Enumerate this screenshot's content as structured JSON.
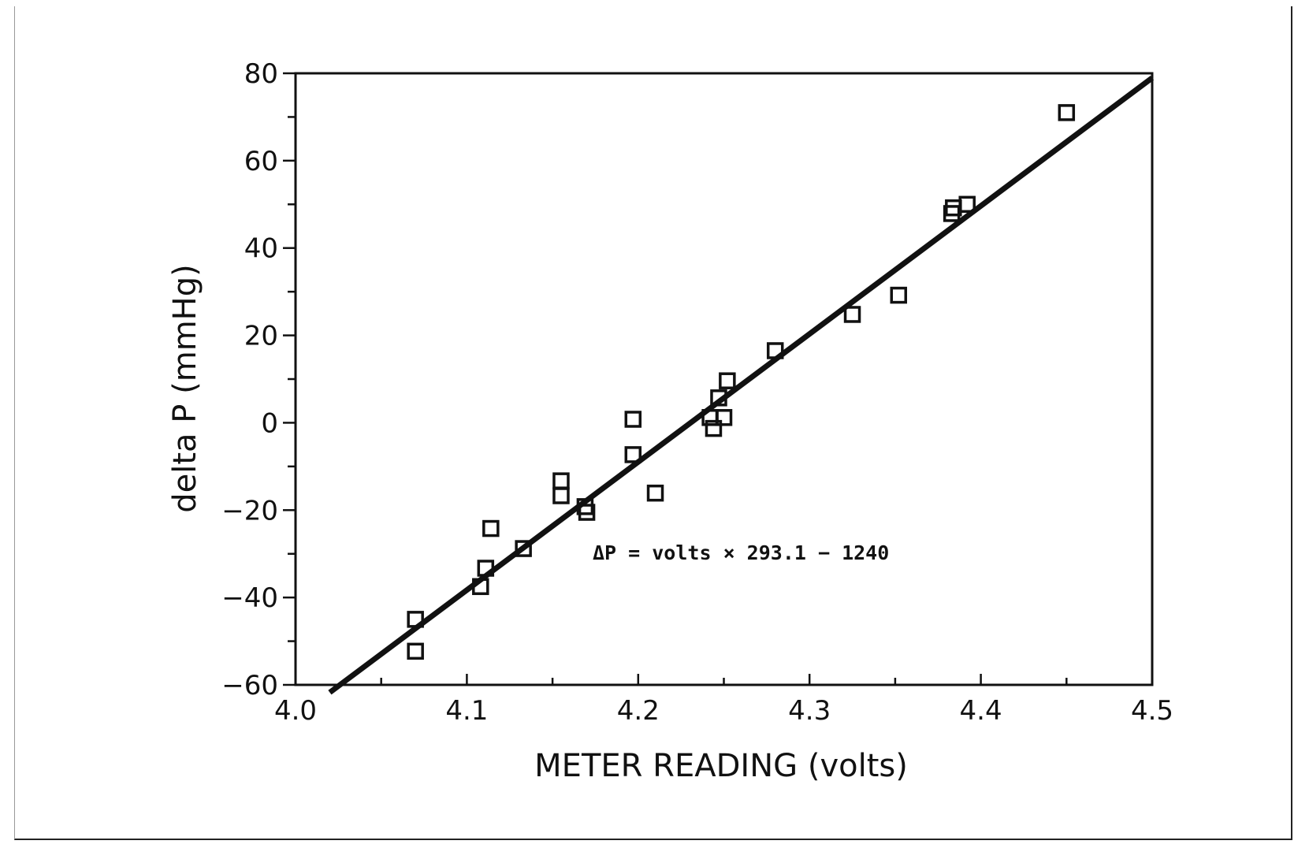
{
  "chart_data": {
    "type": "scatter",
    "xlabel": "METER READING (volts)",
    "ylabel": "delta P (mmHg)",
    "xlim": [
      4.0,
      4.5
    ],
    "ylim": [
      -60,
      80
    ],
    "x_ticks": [
      4.0,
      4.1,
      4.2,
      4.3,
      4.4,
      4.5
    ],
    "x_tick_labels": [
      "4.0",
      "4.1",
      "4.2",
      "4.3",
      "4.4",
      "4.5"
    ],
    "y_ticks": [
      -60,
      -40,
      -20,
      0,
      20,
      40,
      60,
      80
    ],
    "y_tick_labels": [
      "−60",
      "−40",
      "−20",
      "0",
      "20",
      "40",
      "60",
      "80"
    ],
    "grid": false,
    "annotation": "ΔP = volts × 293.1 − 1240",
    "fit_line": {
      "slope": 293.1,
      "intercept": -1240,
      "x_range": [
        4.02,
        4.5
      ]
    },
    "series": [
      {
        "marker": "open-square",
        "points": [
          [
            4.07,
            -45
          ],
          [
            4.07,
            -52.3
          ],
          [
            4.108,
            -37.5
          ],
          [
            4.111,
            -33.3
          ],
          [
            4.114,
            -24.2
          ],
          [
            4.133,
            -28.8
          ],
          [
            4.155,
            -13.3
          ],
          [
            4.155,
            -16.7
          ],
          [
            4.169,
            -19.2
          ],
          [
            4.17,
            -20.5
          ],
          [
            4.197,
            0.8
          ],
          [
            4.197,
            -7.3
          ],
          [
            4.21,
            -16.1
          ],
          [
            4.242,
            1.2
          ],
          [
            4.244,
            -1.3
          ],
          [
            4.247,
            5.7
          ],
          [
            4.25,
            1.2
          ],
          [
            4.252,
            9.6
          ],
          [
            4.28,
            16.5
          ],
          [
            4.325,
            24.8
          ],
          [
            4.352,
            29.2
          ],
          [
            4.383,
            47.9
          ],
          [
            4.384,
            49.2
          ],
          [
            4.392,
            50
          ],
          [
            4.45,
            71
          ]
        ]
      }
    ]
  }
}
